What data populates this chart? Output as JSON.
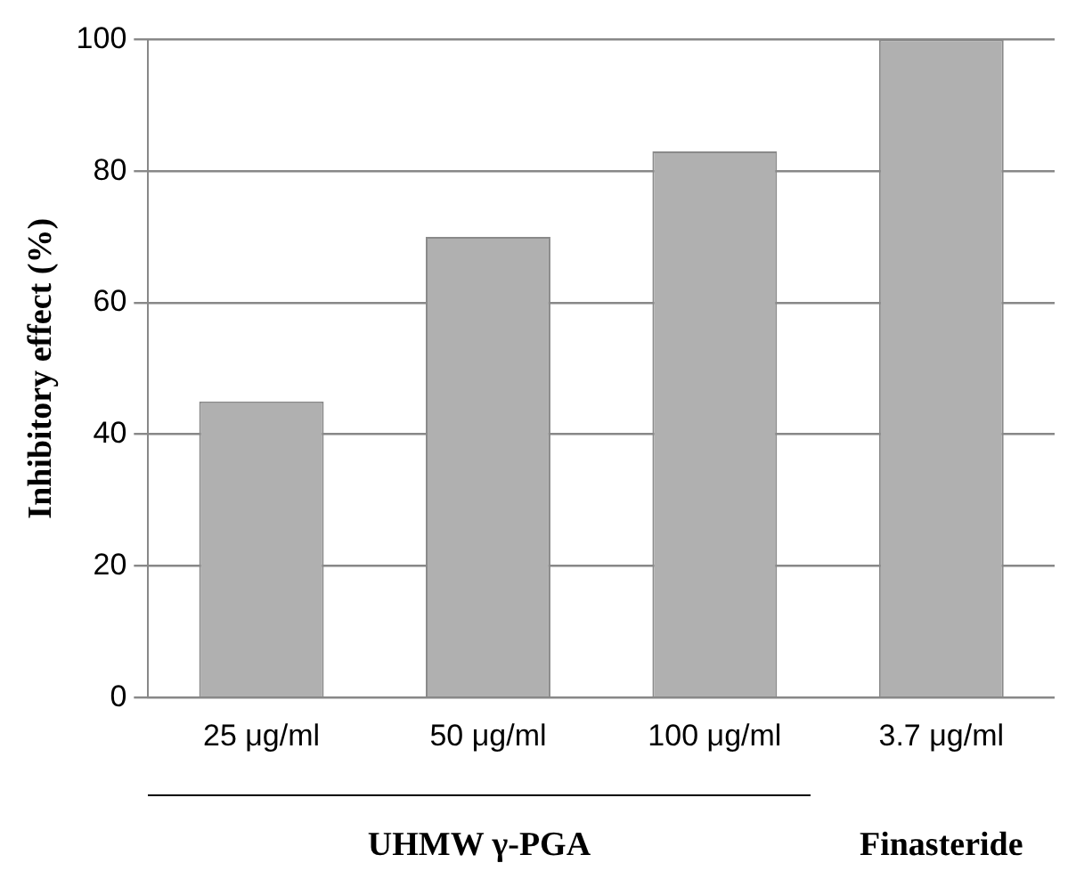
{
  "chart_data": {
    "type": "bar",
    "ylabel": "Inhibitory effect (%)",
    "categories": [
      "25 μg/ml",
      "50 μg/ml",
      "100 μg/ml",
      "3.7 μg/ml"
    ],
    "values": [
      45,
      70,
      83,
      100
    ],
    "color": "#b0b0b0",
    "ylim": [
      0,
      100
    ],
    "yticks": [
      0,
      20,
      40,
      60,
      80,
      100
    ],
    "grid": "y",
    "annotations": [
      "UHMW γ-PGA",
      "Finasteride"
    ]
  }
}
